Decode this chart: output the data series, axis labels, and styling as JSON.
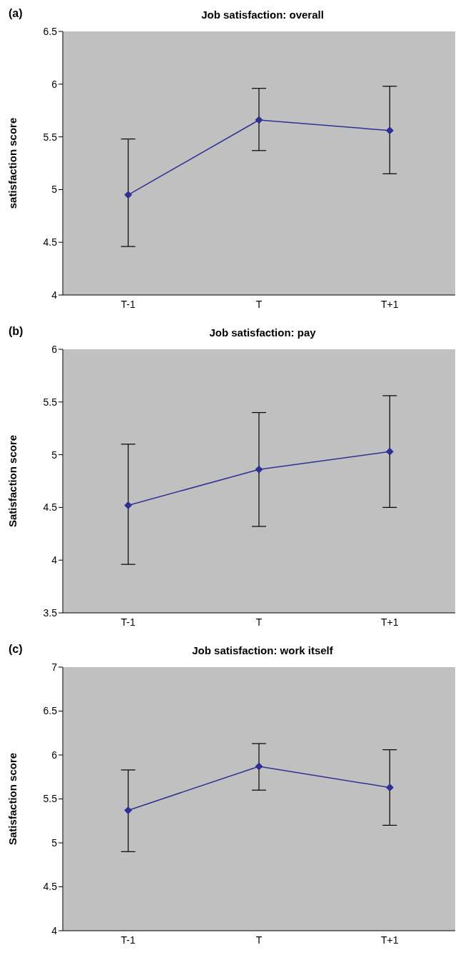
{
  "chart_data": [
    {
      "type": "line",
      "title": "Job satisfaction: overall",
      "annotations": [
        "(a)"
      ],
      "ylabel": "satisfaction score",
      "categories": [
        "T-1",
        "T",
        "T+1"
      ],
      "series": [
        {
          "color": "#2e3192",
          "values": [
            4.95,
            5.66,
            5.56
          ],
          "errors": [
            [
              4.46,
              5.48
            ],
            [
              5.37,
              5.96
            ],
            [
              5.15,
              5.98
            ]
          ]
        }
      ],
      "ylim": [
        4,
        6.5
      ],
      "yticks": [
        4,
        4.5,
        5,
        5.5,
        6,
        6.5
      ],
      "marker": "diamond"
    },
    {
      "type": "line",
      "title": "Job satisfaction: pay",
      "annotations": [
        "(b)"
      ],
      "ylabel": "Satisfaction score",
      "categories": [
        "T-1",
        "T",
        "T+1"
      ],
      "series": [
        {
          "color": "#2e3192",
          "values": [
            4.52,
            4.86,
            5.03
          ],
          "errors": [
            [
              3.96,
              5.1
            ],
            [
              4.32,
              5.4
            ],
            [
              4.5,
              5.56
            ]
          ]
        }
      ],
      "ylim": [
        3.5,
        6
      ],
      "yticks": [
        3.5,
        4,
        4.5,
        5,
        5.5,
        6
      ],
      "marker": "diamond"
    },
    {
      "type": "line",
      "title": "Job satisfaction: work itself",
      "annotations": [
        "(c)"
      ],
      "ylabel": "Satisfaction score",
      "categories": [
        "T-1",
        "T",
        "T+1"
      ],
      "series": [
        {
          "color": "#2e3192",
          "values": [
            5.37,
            5.87,
            5.63
          ],
          "errors": [
            [
              4.9,
              5.83
            ],
            [
              5.6,
              6.13
            ],
            [
              5.2,
              6.06
            ]
          ]
        }
      ],
      "ylim": [
        4,
        7
      ],
      "yticks": [
        4,
        4.5,
        5,
        5.5,
        6,
        6.5,
        7
      ],
      "marker": "diamond"
    }
  ]
}
